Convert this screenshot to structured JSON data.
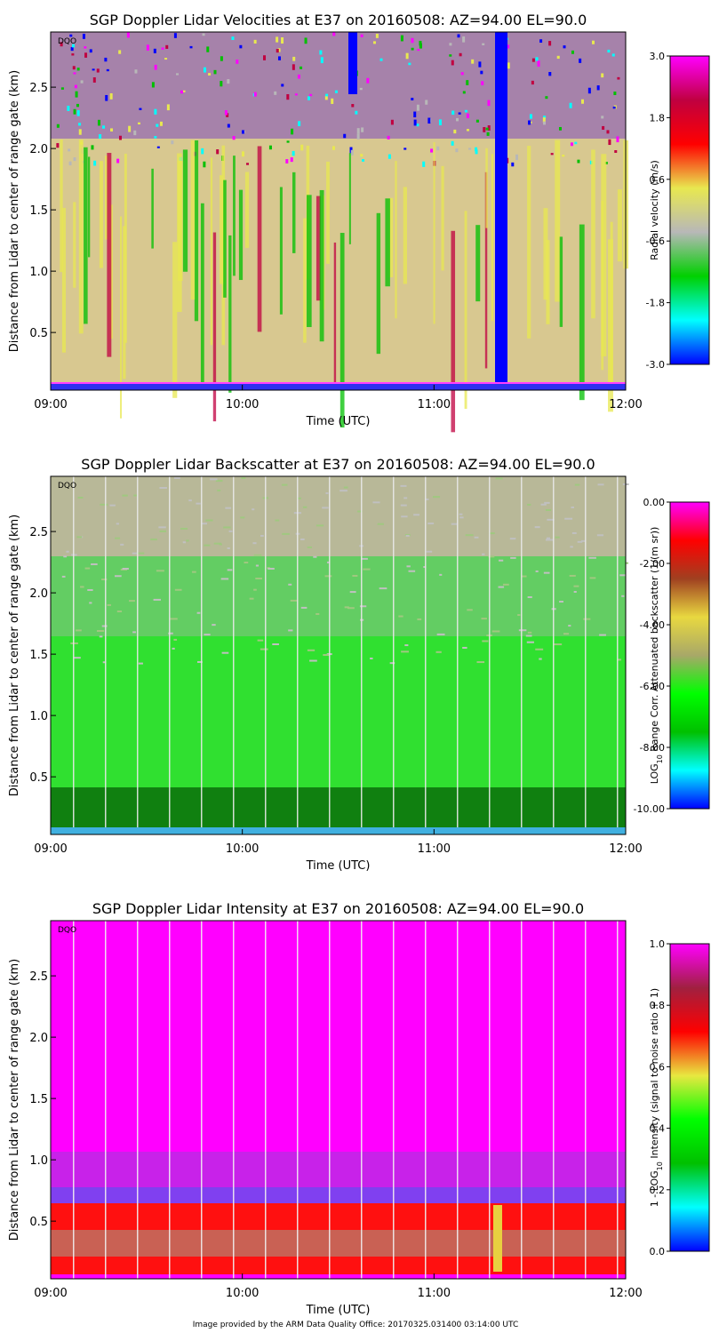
{
  "footer": "Image provided by the ARM Data Quality Office: 20170325.031400 03:14:00 UTC",
  "chart_data": [
    {
      "type": "heatmap",
      "title": "SGP Doppler Lidar Velocities at E37 on 20160508: AZ=94.00 EL=90.0",
      "xlabel": "Time (UTC)",
      "ylabel": "Distance from Lidar to center of range gate (km)",
      "x_ticks": [
        "09:00",
        "10:00",
        "11:00",
        "12:00"
      ],
      "y_ticks": [
        "0.5",
        "1.0",
        "1.5",
        "2.0",
        "2.5"
      ],
      "xlim": [
        "09:00",
        "12:00"
      ],
      "ylim": [
        0.03,
        2.95
      ],
      "corner_tag": "DQO",
      "colorbar": {
        "label": "Radial velocity (m/s)",
        "range": [
          -3.0,
          3.0
        ],
        "ticks": [
          "3.0",
          "1.8",
          "0.6",
          "-0.6",
          "-1.8",
          "-3.0"
        ],
        "colors": [
          "#0000ff",
          "#00ffff",
          "#00d000",
          "#b8b8b8",
          "#e8e850",
          "#ff0000",
          "#c00040",
          "#ff00ff"
        ]
      }
    },
    {
      "type": "heatmap",
      "title": "SGP Doppler Lidar Backscatter at E37 on 20160508: AZ=94.00 EL=90.0",
      "xlabel": "Time (UTC)",
      "ylabel": "Distance from Lidar to center of range gate (km)",
      "x_ticks": [
        "09:00",
        "10:00",
        "11:00",
        "12:00"
      ],
      "y_ticks": [
        "0.5",
        "1.0",
        "1.5",
        "2.0",
        "2.5"
      ],
      "xlim": [
        "09:00",
        "12:00"
      ],
      "ylim": [
        0.03,
        2.95
      ],
      "corner_tag": "DQO",
      "colorbar": {
        "label_parts": [
          "LOG",
          "10",
          " Range Corr. Attenuated backscatter (1/(m sr))"
        ],
        "range": [
          -10.0,
          0.0
        ],
        "ticks": [
          "0.00",
          "-2.00",
          "-4.00",
          "-6.00",
          "-8.00",
          "-10.00"
        ],
        "colors": [
          "#0000ff",
          "#00ffff",
          "#00c000",
          "#00ff00",
          "#a8a868",
          "#e8d840",
          "#a04020",
          "#ff0000",
          "#ff00ff"
        ]
      }
    },
    {
      "type": "heatmap",
      "title": "SGP Doppler Lidar Intensity at E37 on 20160508: AZ=94.00 EL=90.0",
      "xlabel": "Time (UTC)",
      "ylabel": "Distance from Lidar to center of range gate (km)",
      "x_ticks": [
        "09:00",
        "10:00",
        "11:00",
        "12:00"
      ],
      "y_ticks": [
        "0.5",
        "1.0",
        "1.5",
        "2.0",
        "2.5"
      ],
      "xlim": [
        "09:00",
        "12:00"
      ],
      "ylim": [
        0.03,
        2.95
      ],
      "corner_tag": "DQO",
      "colorbar": {
        "label_parts": [
          "1 - LOG",
          "10",
          " Intensity (signal to noise ratio + 1)"
        ],
        "range": [
          0.0,
          1.0
        ],
        "ticks": [
          "1.0",
          "0.8",
          "0.6",
          "0.4",
          "0.2",
          "0.0"
        ],
        "colors": [
          "#0000ff",
          "#00ffff",
          "#00c000",
          "#00ff00",
          "#e8e840",
          "#ff0000",
          "#a02040",
          "#ff00ff"
        ]
      }
    }
  ]
}
